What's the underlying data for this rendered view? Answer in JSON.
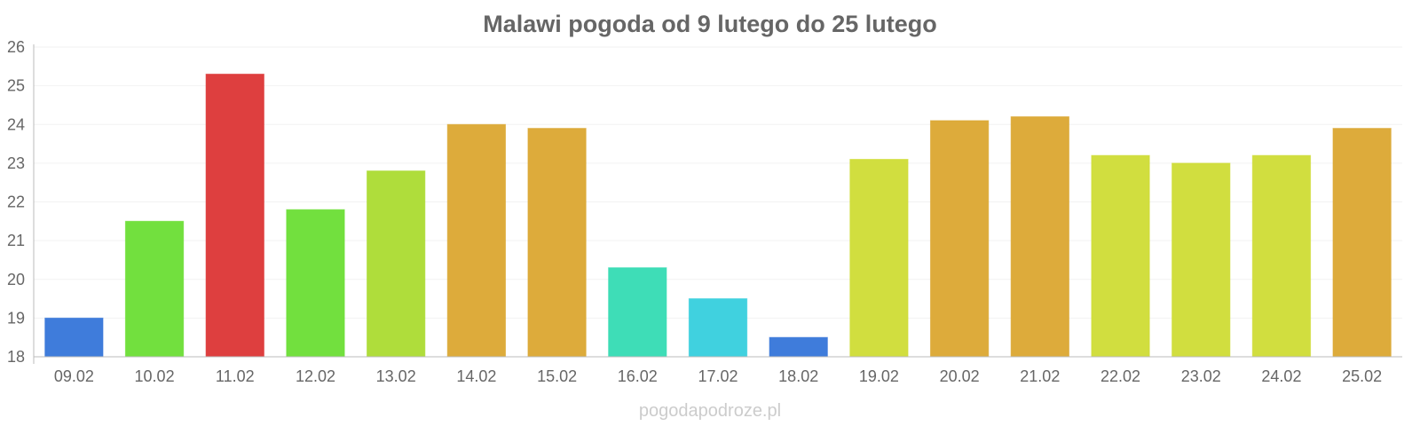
{
  "chart_data": {
    "type": "bar",
    "title": "Malawi pogoda od 9 lutego do 25 lutego",
    "xlabel": "",
    "ylabel": "",
    "categories": [
      "09.02",
      "10.02",
      "11.02",
      "12.02",
      "13.02",
      "14.02",
      "15.02",
      "16.02",
      "17.02",
      "18.02",
      "19.02",
      "20.02",
      "21.02",
      "22.02",
      "23.02",
      "24.02",
      "25.02"
    ],
    "values": [
      19.0,
      21.5,
      25.3,
      21.8,
      22.8,
      24.0,
      23.9,
      20.3,
      19.5,
      18.5,
      23.1,
      24.1,
      24.2,
      23.2,
      23.0,
      23.2,
      23.9
    ],
    "colors": [
      "#3575d9",
      "#6ade34",
      "#dc3535",
      "#6ade34",
      "#abdb30",
      "#dba730",
      "#dba730",
      "#34dbb3",
      "#36cfdd",
      "#3575d9",
      "#cfdc35",
      "#dba730",
      "#dba730",
      "#cfdc35",
      "#cfdc35",
      "#cfdc35",
      "#dba730"
    ],
    "ylim": [
      18,
      26
    ],
    "yticks": [
      "18",
      "19",
      "20",
      "21",
      "22",
      "23",
      "24",
      "25",
      "26"
    ],
    "grid": true,
    "legend": "none"
  },
  "watermark": "pogodapodroze.pl"
}
